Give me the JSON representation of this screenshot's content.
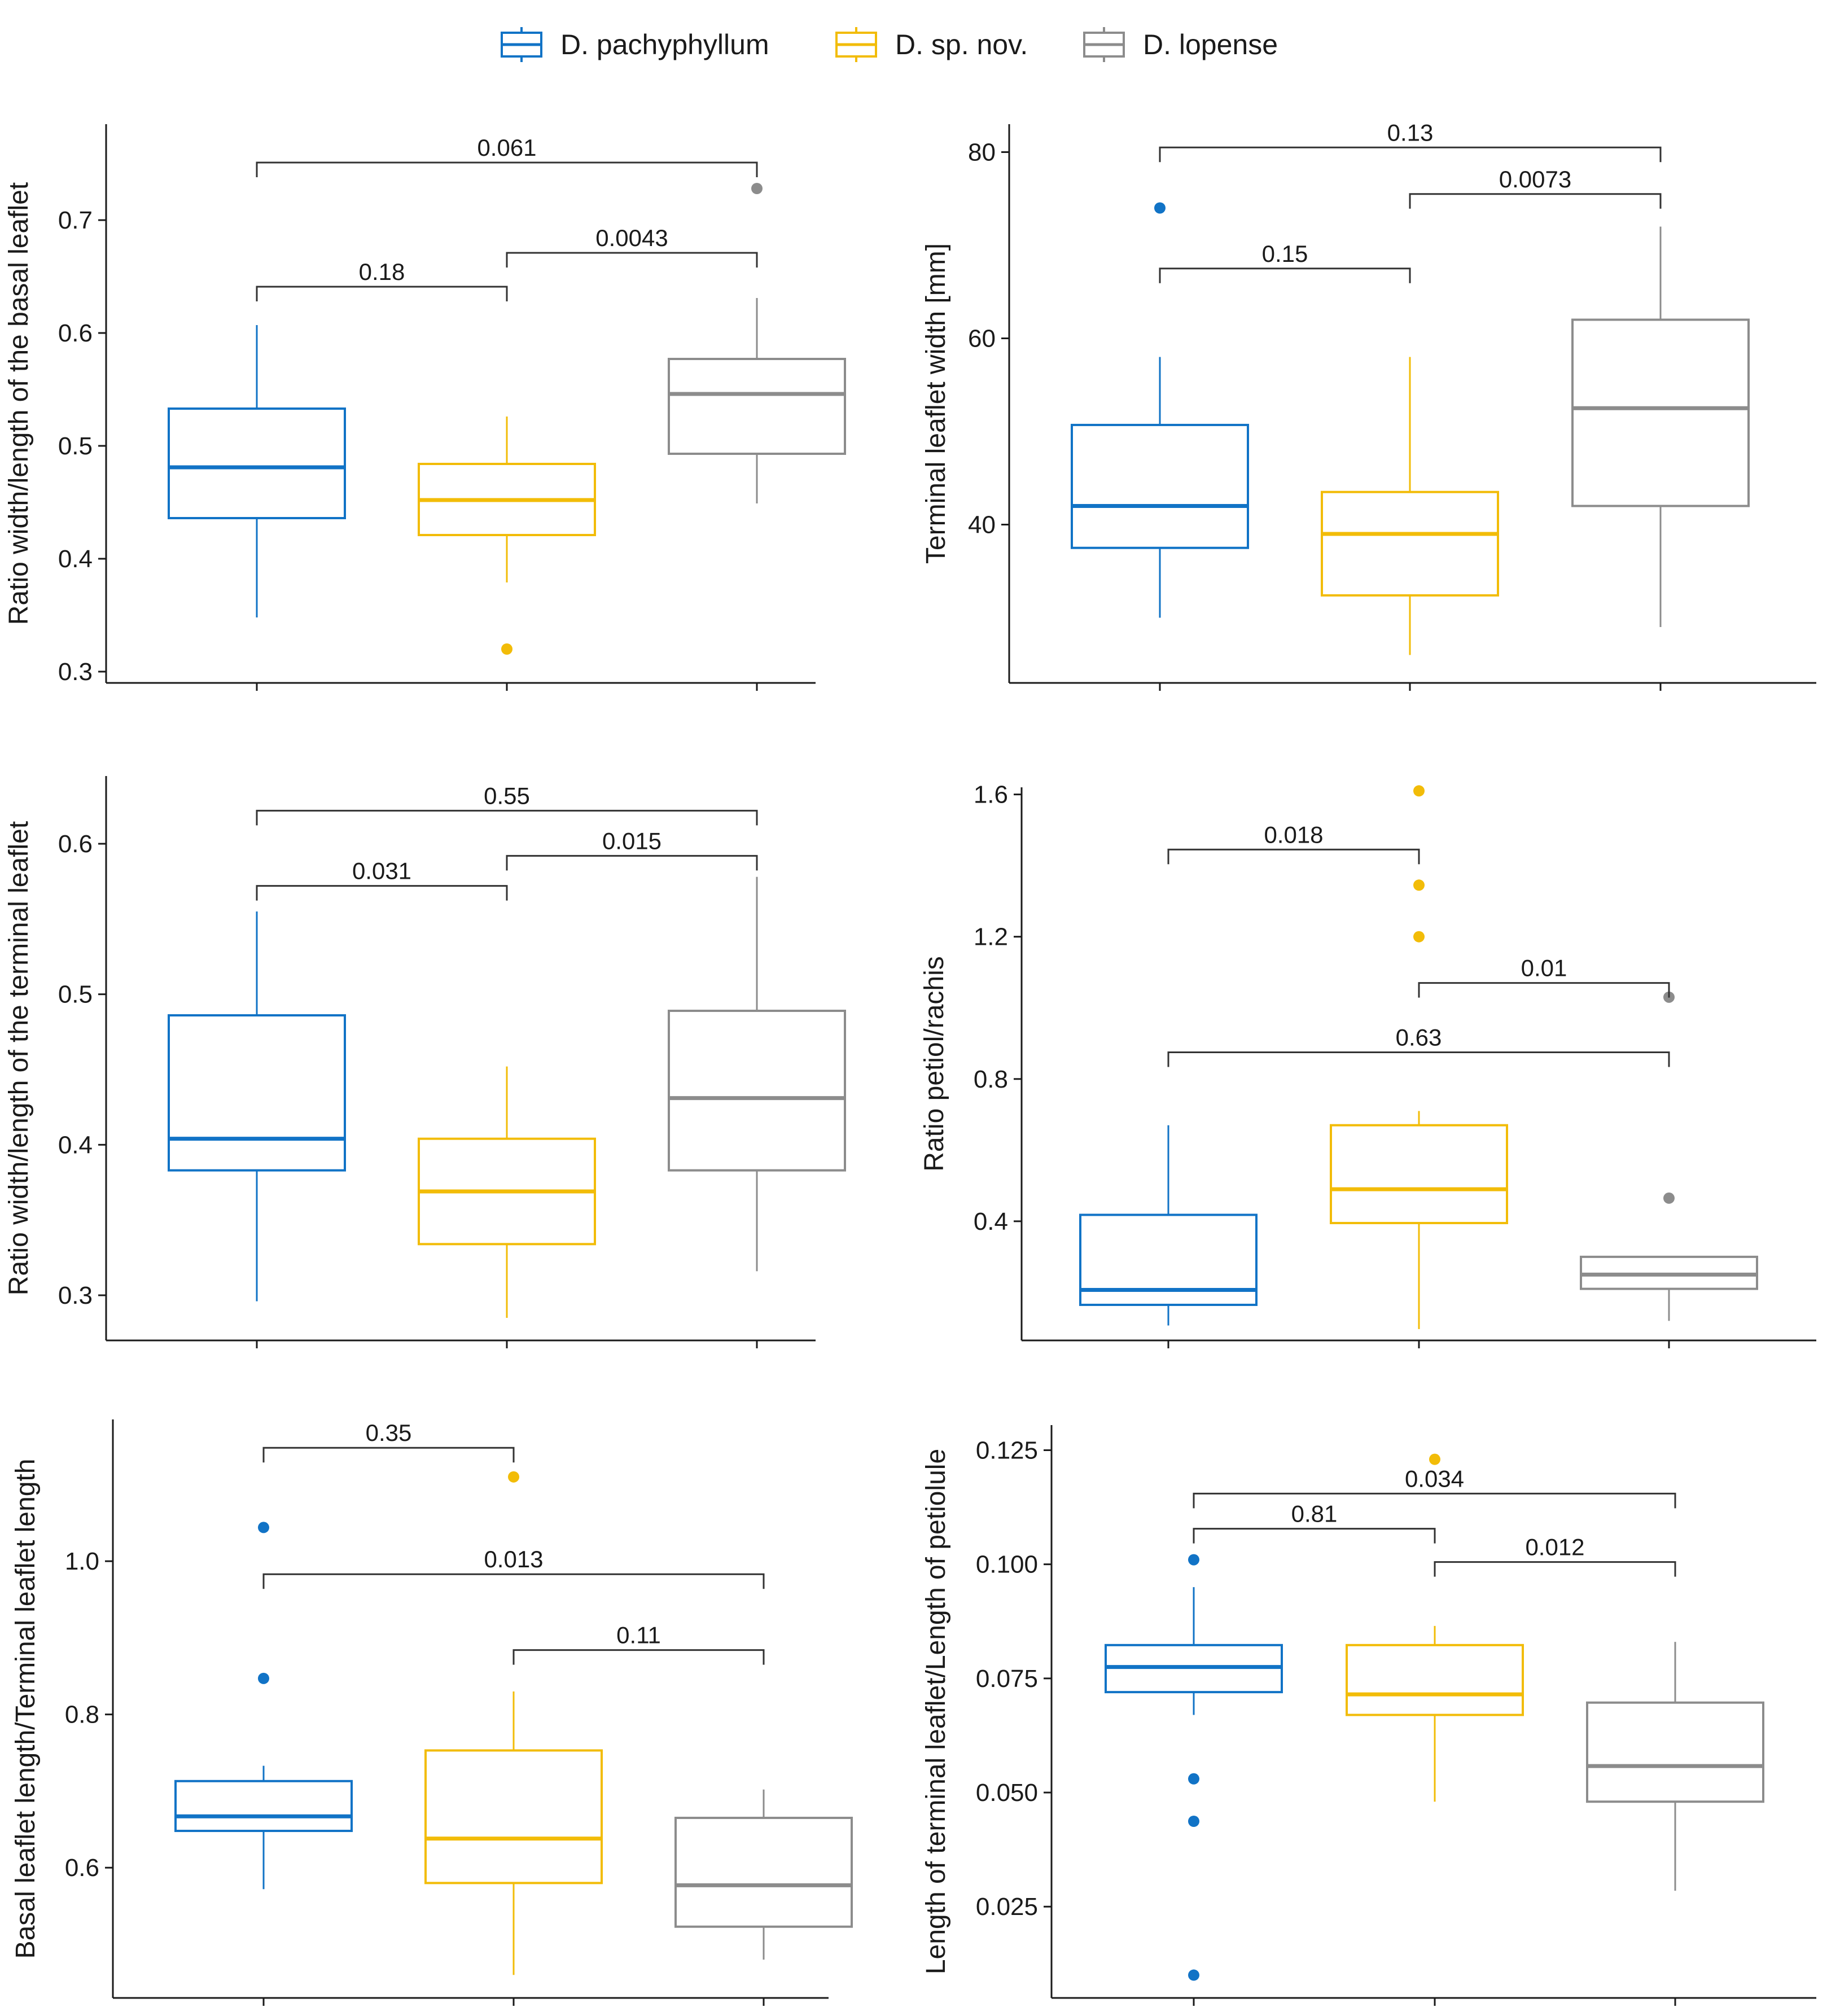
{
  "colors": {
    "D. pachyphyllum": "#1173c6",
    "D. sp. nov.": "#f2bc08",
    "D. lopense": "#8c8c8c",
    "axis": "#1a1a1a",
    "bracket": "#333333"
  },
  "legend": {
    "items": [
      {
        "label": "D. pachyphyllum",
        "color": "#1173c6"
      },
      {
        "label": "D. sp. nov.",
        "color": "#f2bc08"
      },
      {
        "label": "D. lopense",
        "color": "#8c8c8c"
      }
    ]
  },
  "chart_data": [
    {
      "type": "box",
      "ylabel": "Ratio width/length of the basal leaflet",
      "ylim": [
        0.29,
        0.785
      ],
      "yticks": [
        0.3,
        0.4,
        0.5,
        0.6,
        0.7
      ],
      "ytick_labels": [
        "0.3",
        "0.4",
        "0.5",
        "0.6",
        "0.7"
      ],
      "groups": [
        {
          "name": "D. pachyphyllum",
          "min": 0.348,
          "q1": 0.436,
          "median": 0.481,
          "q3": 0.533,
          "max": 0.607,
          "outliers": []
        },
        {
          "name": "D. sp. nov.",
          "min": 0.379,
          "q1": 0.421,
          "median": 0.452,
          "q3": 0.484,
          "max": 0.526,
          "outliers": [
            0.32
          ]
        },
        {
          "name": "D. lopense",
          "min": 0.449,
          "q1": 0.493,
          "median": 0.546,
          "q3": 0.577,
          "max": 0.631,
          "outliers": [
            0.728
          ]
        }
      ],
      "comparisons": [
        {
          "from": 0,
          "to": 1,
          "y": 0.641,
          "label": "0.18"
        },
        {
          "from": 1,
          "to": 2,
          "y": 0.671,
          "label": "0.0043"
        },
        {
          "from": 0,
          "to": 2,
          "y": 0.751,
          "label": "0.061"
        }
      ]
    },
    {
      "type": "box",
      "ylabel": "Terminal leaflet width [mm]",
      "ylim": [
        23,
        83
      ],
      "yticks": [
        40,
        60,
        80
      ],
      "ytick_labels": [
        "40",
        "60",
        "80"
      ],
      "groups": [
        {
          "name": "D. pachyphyllum",
          "min": 30.0,
          "q1": 37.5,
          "median": 42.0,
          "q3": 50.7,
          "max": 58.0,
          "outliers": [
            74.0
          ]
        },
        {
          "name": "D. sp. nov.",
          "min": 26.0,
          "q1": 32.4,
          "median": 39.0,
          "q3": 43.5,
          "max": 58.0,
          "outliers": []
        },
        {
          "name": "D. lopense",
          "min": 29.0,
          "q1": 42.0,
          "median": 52.5,
          "q3": 62.0,
          "max": 72.0,
          "outliers": []
        }
      ],
      "comparisons": [
        {
          "from": 0,
          "to": 1,
          "y": 67.5,
          "label": "0.15"
        },
        {
          "from": 1,
          "to": 2,
          "y": 75.5,
          "label": "0.0073"
        },
        {
          "from": 0,
          "to": 2,
          "y": 80.5,
          "label": "0.13"
        }
      ]
    },
    {
      "type": "box",
      "ylabel": "Ratio width/length of the terminal leaflet",
      "ylim": [
        0.27,
        0.645
      ],
      "yticks": [
        0.3,
        0.4,
        0.5,
        0.6
      ],
      "ytick_labels": [
        "0.3",
        "0.4",
        "0.5",
        "0.6"
      ],
      "groups": [
        {
          "name": "D. pachyphyllum",
          "min": 0.296,
          "q1": 0.383,
          "median": 0.404,
          "q3": 0.486,
          "max": 0.555,
          "outliers": []
        },
        {
          "name": "D. sp. nov.",
          "min": 0.285,
          "q1": 0.334,
          "median": 0.369,
          "q3": 0.404,
          "max": 0.452,
          "outliers": []
        },
        {
          "name": "D. lopense",
          "min": 0.316,
          "q1": 0.383,
          "median": 0.431,
          "q3": 0.489,
          "max": 0.578,
          "outliers": []
        }
      ],
      "comparisons": [
        {
          "from": 0,
          "to": 1,
          "y": 0.572,
          "label": "0.031"
        },
        {
          "from": 1,
          "to": 2,
          "y": 0.592,
          "label": "0.015"
        },
        {
          "from": 0,
          "to": 2,
          "y": 0.622,
          "label": "0.55"
        }
      ]
    },
    {
      "type": "box",
      "ylabel": "Ratio petiol/rachis",
      "ylim": [
        0.065,
        1.62
      ],
      "yticks": [
        0.4,
        0.8,
        1.2,
        1.6
      ],
      "ytick_labels": [
        "0.4",
        "0.8",
        "1.2",
        "1.6"
      ],
      "groups": [
        {
          "name": "D. pachyphyllum",
          "min": 0.107,
          "q1": 0.165,
          "median": 0.207,
          "q3": 0.418,
          "max": 0.67,
          "outliers": []
        },
        {
          "name": "D. sp. nov.",
          "min": 0.097,
          "q1": 0.395,
          "median": 0.49,
          "q3": 0.67,
          "max": 0.71,
          "outliers": [
            1.2,
            1.345,
            1.61
          ]
        },
        {
          "name": "D. lopense",
          "min": 0.12,
          "q1": 0.21,
          "median": 0.25,
          "q3": 0.3,
          "max": 0.3,
          "outliers": [
            0.465,
            1.03
          ]
        }
      ],
      "comparisons": [
        {
          "from": 0,
          "to": 1,
          "y": 1.445,
          "label": "0.018"
        },
        {
          "from": 1,
          "to": 2,
          "y": 1.07,
          "label": "0.01"
        },
        {
          "from": 0,
          "to": 2,
          "y": 0.875,
          "label": "0.63"
        }
      ]
    },
    {
      "type": "box",
      "ylabel": "Basal leaflet length/Terminal leaflet length",
      "ylim": [
        0.43,
        1.185
      ],
      "yticks": [
        0.6,
        0.8,
        1.0
      ],
      "ytick_labels": [
        "0.6",
        "0.8",
        "1.0"
      ],
      "groups": [
        {
          "name": "D. pachyphyllum",
          "min": 0.572,
          "q1": 0.648,
          "median": 0.667,
          "q3": 0.713,
          "max": 0.733,
          "outliers": [
            0.847,
            1.044
          ]
        },
        {
          "name": "D. sp. nov.",
          "min": 0.46,
          "q1": 0.58,
          "median": 0.638,
          "q3": 0.753,
          "max": 0.83,
          "outliers": [
            1.11
          ]
        },
        {
          "name": "D. lopense",
          "min": 0.48,
          "q1": 0.523,
          "median": 0.577,
          "q3": 0.665,
          "max": 0.702,
          "outliers": []
        }
      ],
      "comparisons": [
        {
          "from": 0,
          "to": 1,
          "y": 1.148,
          "label": "0.35"
        },
        {
          "from": 1,
          "to": 2,
          "y": 0.884,
          "label": "0.11"
        },
        {
          "from": 0,
          "to": 2,
          "y": 0.983,
          "label": "0.013"
        }
      ]
    },
    {
      "type": "box",
      "ylabel": "Length of terminal leaflet/Length of petiolule",
      "ylim": [
        0.005,
        0.1305
      ],
      "yticks": [
        0.025,
        0.05,
        0.075,
        0.1,
        0.125
      ],
      "ytick_labels": [
        "0.025",
        "0.050",
        "0.075",
        "0.100",
        "0.125"
      ],
      "groups": [
        {
          "name": "D. pachyphyllum",
          "min": 0.067,
          "q1": 0.072,
          "median": 0.0775,
          "q3": 0.0823,
          "max": 0.095,
          "outliers": [
            0.101,
            0.053,
            0.0437,
            0.01
          ]
        },
        {
          "name": "D. sp. nov.",
          "min": 0.048,
          "q1": 0.067,
          "median": 0.0715,
          "q3": 0.0823,
          "max": 0.0865,
          "outliers": [
            0.123
          ]
        },
        {
          "name": "D. lopense",
          "min": 0.0285,
          "q1": 0.048,
          "median": 0.0558,
          "q3": 0.0697,
          "max": 0.083,
          "outliers": []
        }
      ],
      "comparisons": [
        {
          "from": 0,
          "to": 1,
          "y": 0.1078,
          "label": "0.81"
        },
        {
          "from": 1,
          "to": 2,
          "y": 0.1005,
          "label": "0.012"
        },
        {
          "from": 0,
          "to": 2,
          "y": 0.1155,
          "label": "0.034"
        }
      ]
    }
  ]
}
